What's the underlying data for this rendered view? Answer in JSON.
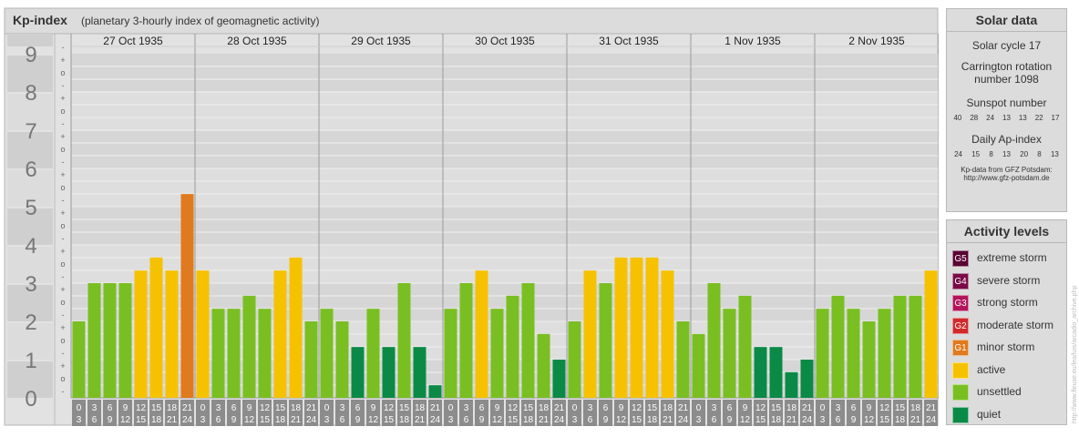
{
  "header": {
    "title": "Kp-index",
    "subtitle": "(planetary 3-hourly index of geomagnetic activity)"
  },
  "chart_data": {
    "type": "bar",
    "title": "Kp-index",
    "subtitle": "(planetary 3-hourly index of geomagnetic activity)",
    "ylim": [
      0,
      9
    ],
    "y_ticks": [
      "0",
      "1",
      "2",
      "3",
      "4",
      "5",
      "6",
      "7",
      "8",
      "9"
    ],
    "y_subticks": [
      "-",
      "o",
      "+"
    ],
    "days": [
      "27 Oct 1935",
      "28 Oct 1935",
      "29 Oct 1935",
      "30 Oct 1935",
      "31 Oct 1935",
      "1 Nov 1935",
      "2 Nov 1935"
    ],
    "interval_start": [
      "0",
      "3",
      "6",
      "9",
      "12",
      "15",
      "18",
      "21"
    ],
    "interval_end": [
      "3",
      "6",
      "9",
      "12",
      "15",
      "18",
      "21",
      "24"
    ],
    "values": [
      [
        2.0,
        3.0,
        3.0,
        3.0,
        3.33,
        3.67,
        3.33,
        5.33
      ],
      [
        3.33,
        2.33,
        2.33,
        2.67,
        2.33,
        3.33,
        3.67,
        2.0
      ],
      [
        2.33,
        2.0,
        1.33,
        2.33,
        1.33,
        3.0,
        1.33,
        0.33
      ],
      [
        2.33,
        3.0,
        3.33,
        2.33,
        2.67,
        3.0,
        1.67,
        1.0
      ],
      [
        2.0,
        3.33,
        3.0,
        3.67,
        3.67,
        3.67,
        3.33,
        2.0
      ],
      [
        1.67,
        3.0,
        2.33,
        2.67,
        1.33,
        1.33,
        0.67,
        1.0
      ],
      [
        2.33,
        2.67,
        2.33,
        2.0,
        2.33,
        2.67,
        2.67,
        3.33
      ]
    ],
    "grid": true
  },
  "solar": {
    "title": "Solar data",
    "cycle": "Solar cycle 17",
    "carrington_1": "Carrington rotation",
    "carrington_2": "number 1098",
    "sunspot_label": "Sunspot number",
    "sunspot_values": [
      "40",
      "28",
      "24",
      "13",
      "13",
      "22",
      "17"
    ],
    "ap_label": "Daily Ap-index",
    "ap_values": [
      "24",
      "15",
      "8",
      "13",
      "20",
      "8",
      "13"
    ],
    "source_1": "Kp-data from GFZ Potsdam:",
    "source_2": "http://www.gfz-potsdam.de"
  },
  "levels": {
    "title": "Activity levels",
    "items": [
      {
        "badge": "G5",
        "label": "extreme storm",
        "color": "#5a0032"
      },
      {
        "badge": "G4",
        "label": "severe storm",
        "color": "#7a0a46"
      },
      {
        "badge": "G3",
        "label": "strong storm",
        "color": "#b3145a"
      },
      {
        "badge": "G2",
        "label": "moderate storm",
        "color": "#d02a2a"
      },
      {
        "badge": "G1",
        "label": "minor storm",
        "color": "#e07a1e"
      },
      {
        "badge": "",
        "label": "active",
        "color": "#f6c200"
      },
      {
        "badge": "",
        "label": "unsettled",
        "color": "#79bf22"
      },
      {
        "badge": "",
        "label": "quiet",
        "color": "#0a8a46"
      }
    ]
  },
  "watermark": "http://www.fleuse.eu/lea/luis/arcadio_archive.php"
}
